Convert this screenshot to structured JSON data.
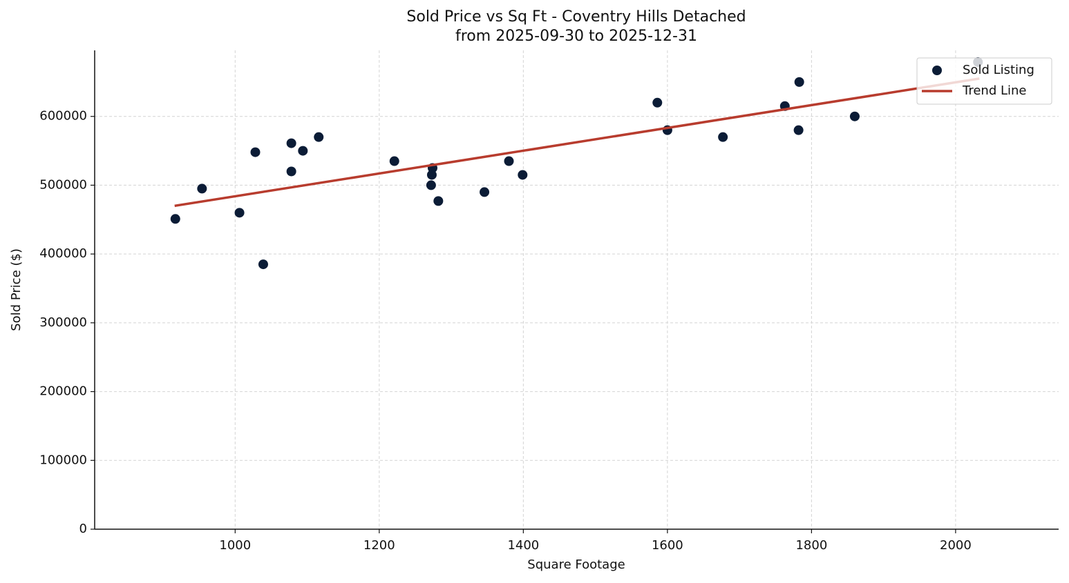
{
  "chart_data": {
    "type": "scatter",
    "title": "Sold Price vs Sq Ft - Coventry Hills Detached",
    "subtitle": "from 2025-09-30 to 2025-12-31",
    "x_label": "Square Footage",
    "y_label": "Sold Price ($)",
    "xlim": [
      805,
      2143
    ],
    "ylim": [
      0,
      696000
    ],
    "xticks": [
      1000,
      1200,
      1400,
      1600,
      1800,
      2000
    ],
    "yticks": [
      0,
      100000,
      200000,
      300000,
      400000,
      500000,
      600000
    ],
    "grid": true,
    "legend": "upper right",
    "series": [
      {
        "name": "Sold Listing",
        "type": "scatter",
        "color": "#0b1c36",
        "x": [
          917,
          954,
          1006,
          1028,
          1039,
          1078,
          1078,
          1094,
          1116,
          1221,
          1274,
          1273,
          1272,
          1282,
          1346,
          1380,
          1399,
          1586,
          1600,
          1677,
          1763,
          1783,
          1782,
          1860,
          2031
        ],
        "values": [
          451000,
          495000,
          460000,
          548000,
          385000,
          561000,
          520000,
          550000,
          570000,
          535000,
          525000,
          515000,
          500000,
          477000,
          490000,
          535000,
          515000,
          620000,
          580000,
          570000,
          615000,
          650000,
          580000,
          600000,
          679000
        ]
      },
      {
        "name": "Trend Line",
        "type": "line",
        "color": "#b83c2e",
        "x": [
          916,
          2033
        ],
        "values": [
          470000,
          655000
        ]
      }
    ]
  }
}
